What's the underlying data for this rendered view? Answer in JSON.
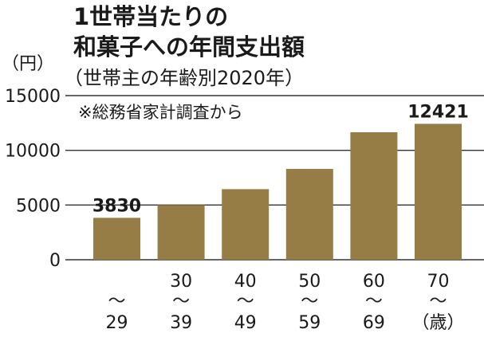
{
  "chart_data": {
    "type": "bar",
    "title_lines": [
      "1世帯当たりの",
      "和菓子への年間支出額"
    ],
    "subtitle": "（世帯主の年齢別2020年）",
    "note": "※総務省家計調査から",
    "unit": "（円）",
    "ylim": [
      0,
      15000
    ],
    "yticks": [
      "15000",
      "10000",
      "5000",
      "0"
    ],
    "grid": true,
    "categories": [
      {
        "lines": [
          "",
          "〜",
          "29"
        ]
      },
      {
        "lines": [
          "30",
          "〜",
          "39"
        ]
      },
      {
        "lines": [
          "40",
          "〜",
          "49"
        ]
      },
      {
        "lines": [
          "50",
          "〜",
          "59"
        ]
      },
      {
        "lines": [
          "60",
          "〜",
          "69"
        ]
      },
      {
        "lines": [
          "70",
          "〜",
          "（歳）"
        ]
      }
    ],
    "values": [
      3830,
      5000,
      6450,
      8300,
      11650,
      12421
    ],
    "data_labels": [
      "3830",
      "",
      "",
      "",
      "",
      "12421"
    ],
    "bar_color": "#957d45"
  }
}
